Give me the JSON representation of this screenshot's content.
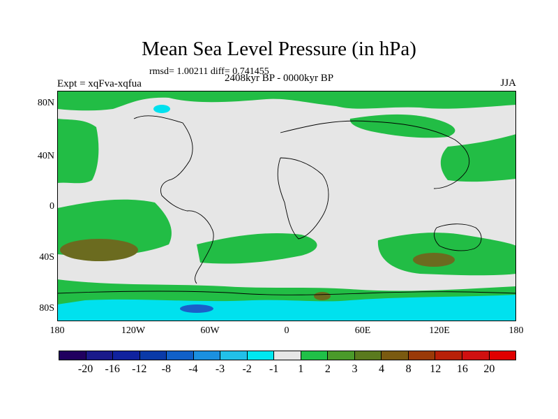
{
  "title": "Mean Sea Level Pressure (in hPa)",
  "stats": "rmsd= 1.00211 diff= 0.741455",
  "experiment": "Expt = xqFva-xqfua",
  "period": "2408kyr BP - 0000kyr BP",
  "season": "JJA",
  "lat_labels": [
    "80N",
    "40N",
    "0",
    "40S",
    "80S"
  ],
  "lon_labels": [
    "180",
    "120W",
    "60W",
    "0",
    "60E",
    "120E",
    "180"
  ],
  "colorbar": {
    "labels": [
      "-20",
      "-16",
      "-12",
      "-8",
      "-4",
      "-3",
      "-2",
      "-1",
      "1",
      "2",
      "3",
      "4",
      "8",
      "12",
      "16",
      "20"
    ],
    "colors": [
      "#20005f",
      "#1a1a8a",
      "#10229e",
      "#0a3aa8",
      "#1060c8",
      "#1b90e0",
      "#22c0e8",
      "#00e8f0",
      "#e6e6e6",
      "#20c048",
      "#4a9a2a",
      "#5a7a1e",
      "#7a5a10",
      "#9a3a08",
      "#b82008",
      "#d01010",
      "#e00000"
    ]
  },
  "colors": {
    "neutral": "#e6e6e6",
    "green": "#22bd45",
    "olive": "#6b6b1f",
    "cyan": "#00e1ee",
    "blue": "#1a5fc9"
  }
}
